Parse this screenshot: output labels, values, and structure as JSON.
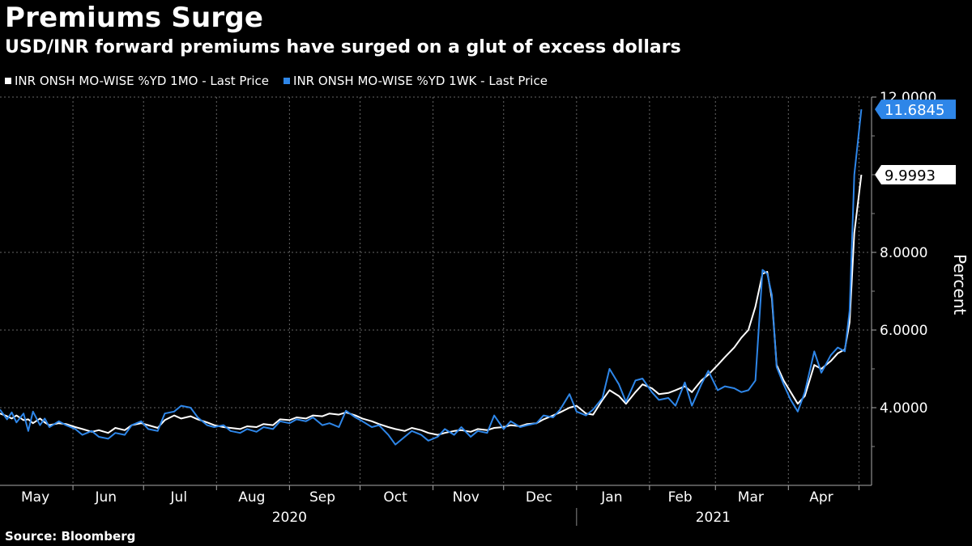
{
  "title": "Premiums Surge",
  "subtitle": "USD/INR forward premiums have surged on a glut of excess dollars",
  "source": "Source: Bloomberg",
  "colors": {
    "background": "#000000",
    "series_1mo": "#ffffff",
    "series_1wk": "#2e86e8",
    "grid": "#666666"
  },
  "chart_data": {
    "type": "line",
    "title": "Premiums Surge",
    "subtitle": "USD/INR forward premiums have surged on a glut of excess dollars",
    "ylabel": "Percent",
    "ylim": [
      2.0,
      12.0
    ],
    "yticks": [
      "4.0000",
      "6.0000",
      "8.0000",
      "12.0000"
    ],
    "ytick_values": [
      4,
      6,
      8,
      12
    ],
    "xlim": [
      "2020-05-01",
      "2021-05-06"
    ],
    "month_labels": [
      {
        "label": "May",
        "date": "2020-05-16"
      },
      {
        "label": "Jun",
        "date": "2020-06-15"
      },
      {
        "label": "Jul",
        "date": "2020-07-16"
      },
      {
        "label": "Aug",
        "date": "2020-08-16"
      },
      {
        "label": "Sep",
        "date": "2020-09-15"
      },
      {
        "label": "Oct",
        "date": "2020-10-16"
      },
      {
        "label": "Nov",
        "date": "2020-11-15"
      },
      {
        "label": "Dec",
        "date": "2020-12-16"
      },
      {
        "label": "Jan",
        "date": "2021-01-16"
      },
      {
        "label": "Feb",
        "date": "2021-02-14"
      },
      {
        "label": "Mar",
        "date": "2021-03-16"
      },
      {
        "label": "Apr",
        "date": "2021-04-15"
      }
    ],
    "year_labels": [
      {
        "label": "2020",
        "date": "2020-09-01"
      },
      {
        "label": "2021",
        "date": "2021-02-28"
      }
    ],
    "year_divider": "2021-01-01",
    "grid": true,
    "legend_position": "top-left",
    "series": [
      {
        "name": "INR ONSH MO-WISE %YD 1MO - Last Price",
        "color": "#ffffff",
        "last_label": "9.9993",
        "points": [
          [
            "2020-05-01",
            3.85
          ],
          [
            "2020-05-04",
            3.78
          ],
          [
            "2020-05-06",
            3.72
          ],
          [
            "2020-05-08",
            3.8
          ],
          [
            "2020-05-11",
            3.68
          ],
          [
            "2020-05-13",
            3.7
          ],
          [
            "2020-05-15",
            3.6
          ],
          [
            "2020-05-18",
            3.72
          ],
          [
            "2020-05-20",
            3.62
          ],
          [
            "2020-05-22",
            3.55
          ],
          [
            "2020-05-26",
            3.6
          ],
          [
            "2020-05-29",
            3.58
          ],
          [
            "2020-06-02",
            3.5
          ],
          [
            "2020-06-05",
            3.45
          ],
          [
            "2020-06-09",
            3.38
          ],
          [
            "2020-06-12",
            3.42
          ],
          [
            "2020-06-16",
            3.35
          ],
          [
            "2020-06-19",
            3.48
          ],
          [
            "2020-06-23",
            3.42
          ],
          [
            "2020-06-26",
            3.55
          ],
          [
            "2020-06-30",
            3.6
          ],
          [
            "2020-07-03",
            3.55
          ],
          [
            "2020-07-07",
            3.48
          ],
          [
            "2020-07-10",
            3.68
          ],
          [
            "2020-07-14",
            3.8
          ],
          [
            "2020-07-17",
            3.72
          ],
          [
            "2020-07-21",
            3.78
          ],
          [
            "2020-07-24",
            3.7
          ],
          [
            "2020-07-28",
            3.62
          ],
          [
            "2020-07-31",
            3.55
          ],
          [
            "2020-08-04",
            3.5
          ],
          [
            "2020-08-07",
            3.48
          ],
          [
            "2020-08-11",
            3.45
          ],
          [
            "2020-08-14",
            3.52
          ],
          [
            "2020-08-18",
            3.5
          ],
          [
            "2020-08-21",
            3.58
          ],
          [
            "2020-08-25",
            3.55
          ],
          [
            "2020-08-28",
            3.7
          ],
          [
            "2020-09-01",
            3.68
          ],
          [
            "2020-09-04",
            3.75
          ],
          [
            "2020-09-08",
            3.72
          ],
          [
            "2020-09-11",
            3.8
          ],
          [
            "2020-09-15",
            3.78
          ],
          [
            "2020-09-18",
            3.85
          ],
          [
            "2020-09-22",
            3.82
          ],
          [
            "2020-09-25",
            3.88
          ],
          [
            "2020-09-29",
            3.8
          ],
          [
            "2020-10-02",
            3.72
          ],
          [
            "2020-10-06",
            3.65
          ],
          [
            "2020-10-09",
            3.58
          ],
          [
            "2020-10-13",
            3.5
          ],
          [
            "2020-10-16",
            3.45
          ],
          [
            "2020-10-20",
            3.4
          ],
          [
            "2020-10-23",
            3.48
          ],
          [
            "2020-10-27",
            3.42
          ],
          [
            "2020-10-30",
            3.35
          ],
          [
            "2020-11-03",
            3.3
          ],
          [
            "2020-11-06",
            3.35
          ],
          [
            "2020-11-10",
            3.4
          ],
          [
            "2020-11-13",
            3.42
          ],
          [
            "2020-11-17",
            3.38
          ],
          [
            "2020-11-20",
            3.45
          ],
          [
            "2020-11-24",
            3.42
          ],
          [
            "2020-11-27",
            3.48
          ],
          [
            "2020-12-01",
            3.5
          ],
          [
            "2020-12-04",
            3.55
          ],
          [
            "2020-12-08",
            3.52
          ],
          [
            "2020-12-11",
            3.58
          ],
          [
            "2020-12-15",
            3.6
          ],
          [
            "2020-12-18",
            3.7
          ],
          [
            "2020-12-22",
            3.8
          ],
          [
            "2020-12-25",
            3.88
          ],
          [
            "2020-12-29",
            4.0
          ],
          [
            "2021-01-01",
            4.05
          ],
          [
            "2021-01-05",
            3.85
          ],
          [
            "2021-01-08",
            3.82
          ],
          [
            "2021-01-12",
            4.2
          ],
          [
            "2021-01-15",
            4.45
          ],
          [
            "2021-01-19",
            4.3
          ],
          [
            "2021-01-22",
            4.1
          ],
          [
            "2021-01-26",
            4.4
          ],
          [
            "2021-01-29",
            4.6
          ],
          [
            "2021-02-02",
            4.5
          ],
          [
            "2021-02-05",
            4.35
          ],
          [
            "2021-02-09",
            4.38
          ],
          [
            "2021-02-12",
            4.45
          ],
          [
            "2021-02-16",
            4.55
          ],
          [
            "2021-02-19",
            4.4
          ],
          [
            "2021-02-23",
            4.7
          ],
          [
            "2021-02-26",
            4.85
          ],
          [
            "2021-03-02",
            5.1
          ],
          [
            "2021-03-05",
            5.3
          ],
          [
            "2021-03-09",
            5.55
          ],
          [
            "2021-03-12",
            5.8
          ],
          [
            "2021-03-15",
            6.0
          ],
          [
            "2021-03-18",
            6.6
          ],
          [
            "2021-03-21",
            7.45
          ],
          [
            "2021-03-23",
            7.5
          ],
          [
            "2021-03-25",
            6.8
          ],
          [
            "2021-03-27",
            5.1
          ],
          [
            "2021-03-30",
            4.7
          ],
          [
            "2021-04-02",
            4.4
          ],
          [
            "2021-04-05",
            4.1
          ],
          [
            "2021-04-08",
            4.3
          ],
          [
            "2021-04-12",
            5.1
          ],
          [
            "2021-04-15",
            5.0
          ],
          [
            "2021-04-19",
            5.2
          ],
          [
            "2021-04-22",
            5.4
          ],
          [
            "2021-04-25",
            5.5
          ],
          [
            "2021-04-27",
            6.2
          ],
          [
            "2021-04-29",
            8.5
          ],
          [
            "2021-05-02",
            9.9993
          ]
        ]
      },
      {
        "name": "INR ONSH MO-WISE %YD 1WK - Last Price",
        "color": "#2e86e8",
        "last_label": "11.6845",
        "points": [
          [
            "2020-05-01",
            3.95
          ],
          [
            "2020-05-04",
            3.7
          ],
          [
            "2020-05-06",
            3.88
          ],
          [
            "2020-05-08",
            3.62
          ],
          [
            "2020-05-11",
            3.85
          ],
          [
            "2020-05-13",
            3.4
          ],
          [
            "2020-05-15",
            3.9
          ],
          [
            "2020-05-18",
            3.55
          ],
          [
            "2020-05-20",
            3.72
          ],
          [
            "2020-05-22",
            3.5
          ],
          [
            "2020-05-26",
            3.65
          ],
          [
            "2020-05-29",
            3.55
          ],
          [
            "2020-06-02",
            3.45
          ],
          [
            "2020-06-05",
            3.3
          ],
          [
            "2020-06-09",
            3.4
          ],
          [
            "2020-06-12",
            3.25
          ],
          [
            "2020-06-16",
            3.2
          ],
          [
            "2020-06-19",
            3.35
          ],
          [
            "2020-06-23",
            3.3
          ],
          [
            "2020-06-26",
            3.55
          ],
          [
            "2020-06-30",
            3.65
          ],
          [
            "2020-07-03",
            3.45
          ],
          [
            "2020-07-07",
            3.4
          ],
          [
            "2020-07-10",
            3.85
          ],
          [
            "2020-07-14",
            3.9
          ],
          [
            "2020-07-17",
            4.05
          ],
          [
            "2020-07-21",
            4.0
          ],
          [
            "2020-07-24",
            3.75
          ],
          [
            "2020-07-28",
            3.55
          ],
          [
            "2020-07-31",
            3.5
          ],
          [
            "2020-08-04",
            3.55
          ],
          [
            "2020-08-07",
            3.4
          ],
          [
            "2020-08-11",
            3.35
          ],
          [
            "2020-08-14",
            3.45
          ],
          [
            "2020-08-18",
            3.38
          ],
          [
            "2020-08-21",
            3.5
          ],
          [
            "2020-08-25",
            3.45
          ],
          [
            "2020-08-28",
            3.65
          ],
          [
            "2020-09-01",
            3.6
          ],
          [
            "2020-09-04",
            3.7
          ],
          [
            "2020-09-08",
            3.65
          ],
          [
            "2020-09-11",
            3.75
          ],
          [
            "2020-09-15",
            3.55
          ],
          [
            "2020-09-18",
            3.6
          ],
          [
            "2020-09-22",
            3.5
          ],
          [
            "2020-09-25",
            3.92
          ],
          [
            "2020-09-29",
            3.75
          ],
          [
            "2020-10-02",
            3.65
          ],
          [
            "2020-10-06",
            3.5
          ],
          [
            "2020-10-09",
            3.55
          ],
          [
            "2020-10-13",
            3.3
          ],
          [
            "2020-10-16",
            3.05
          ],
          [
            "2020-10-20",
            3.25
          ],
          [
            "2020-10-23",
            3.4
          ],
          [
            "2020-10-27",
            3.3
          ],
          [
            "2020-10-30",
            3.15
          ],
          [
            "2020-11-03",
            3.25
          ],
          [
            "2020-11-06",
            3.45
          ],
          [
            "2020-11-10",
            3.3
          ],
          [
            "2020-11-13",
            3.5
          ],
          [
            "2020-11-17",
            3.25
          ],
          [
            "2020-11-20",
            3.4
          ],
          [
            "2020-11-24",
            3.35
          ],
          [
            "2020-11-27",
            3.8
          ],
          [
            "2020-12-01",
            3.45
          ],
          [
            "2020-12-04",
            3.65
          ],
          [
            "2020-12-08",
            3.5
          ],
          [
            "2020-12-11",
            3.55
          ],
          [
            "2020-12-15",
            3.6
          ],
          [
            "2020-12-18",
            3.8
          ],
          [
            "2020-12-22",
            3.75
          ],
          [
            "2020-12-25",
            3.95
          ],
          [
            "2020-12-29",
            4.35
          ],
          [
            "2021-01-01",
            3.9
          ],
          [
            "2021-01-05",
            3.8
          ],
          [
            "2021-01-08",
            3.95
          ],
          [
            "2021-01-12",
            4.25
          ],
          [
            "2021-01-15",
            5.0
          ],
          [
            "2021-01-19",
            4.6
          ],
          [
            "2021-01-22",
            4.15
          ],
          [
            "2021-01-26",
            4.7
          ],
          [
            "2021-01-29",
            4.75
          ],
          [
            "2021-02-02",
            4.4
          ],
          [
            "2021-02-05",
            4.2
          ],
          [
            "2021-02-09",
            4.25
          ],
          [
            "2021-02-12",
            4.05
          ],
          [
            "2021-02-16",
            4.65
          ],
          [
            "2021-02-19",
            4.05
          ],
          [
            "2021-02-23",
            4.6
          ],
          [
            "2021-02-26",
            4.95
          ],
          [
            "2021-03-02",
            4.45
          ],
          [
            "2021-03-05",
            4.55
          ],
          [
            "2021-03-09",
            4.5
          ],
          [
            "2021-03-12",
            4.4
          ],
          [
            "2021-03-15",
            4.45
          ],
          [
            "2021-03-18",
            4.7
          ],
          [
            "2021-03-21",
            7.55
          ],
          [
            "2021-03-23",
            7.45
          ],
          [
            "2021-03-25",
            6.9
          ],
          [
            "2021-03-27",
            5.05
          ],
          [
            "2021-03-30",
            4.6
          ],
          [
            "2021-04-02",
            4.2
          ],
          [
            "2021-04-05",
            3.9
          ],
          [
            "2021-04-08",
            4.4
          ],
          [
            "2021-04-12",
            5.45
          ],
          [
            "2021-04-15",
            4.9
          ],
          [
            "2021-04-19",
            5.35
          ],
          [
            "2021-04-22",
            5.55
          ],
          [
            "2021-04-25",
            5.45
          ],
          [
            "2021-04-27",
            6.5
          ],
          [
            "2021-04-29",
            10.0
          ],
          [
            "2021-05-02",
            11.6845
          ]
        ]
      }
    ]
  }
}
